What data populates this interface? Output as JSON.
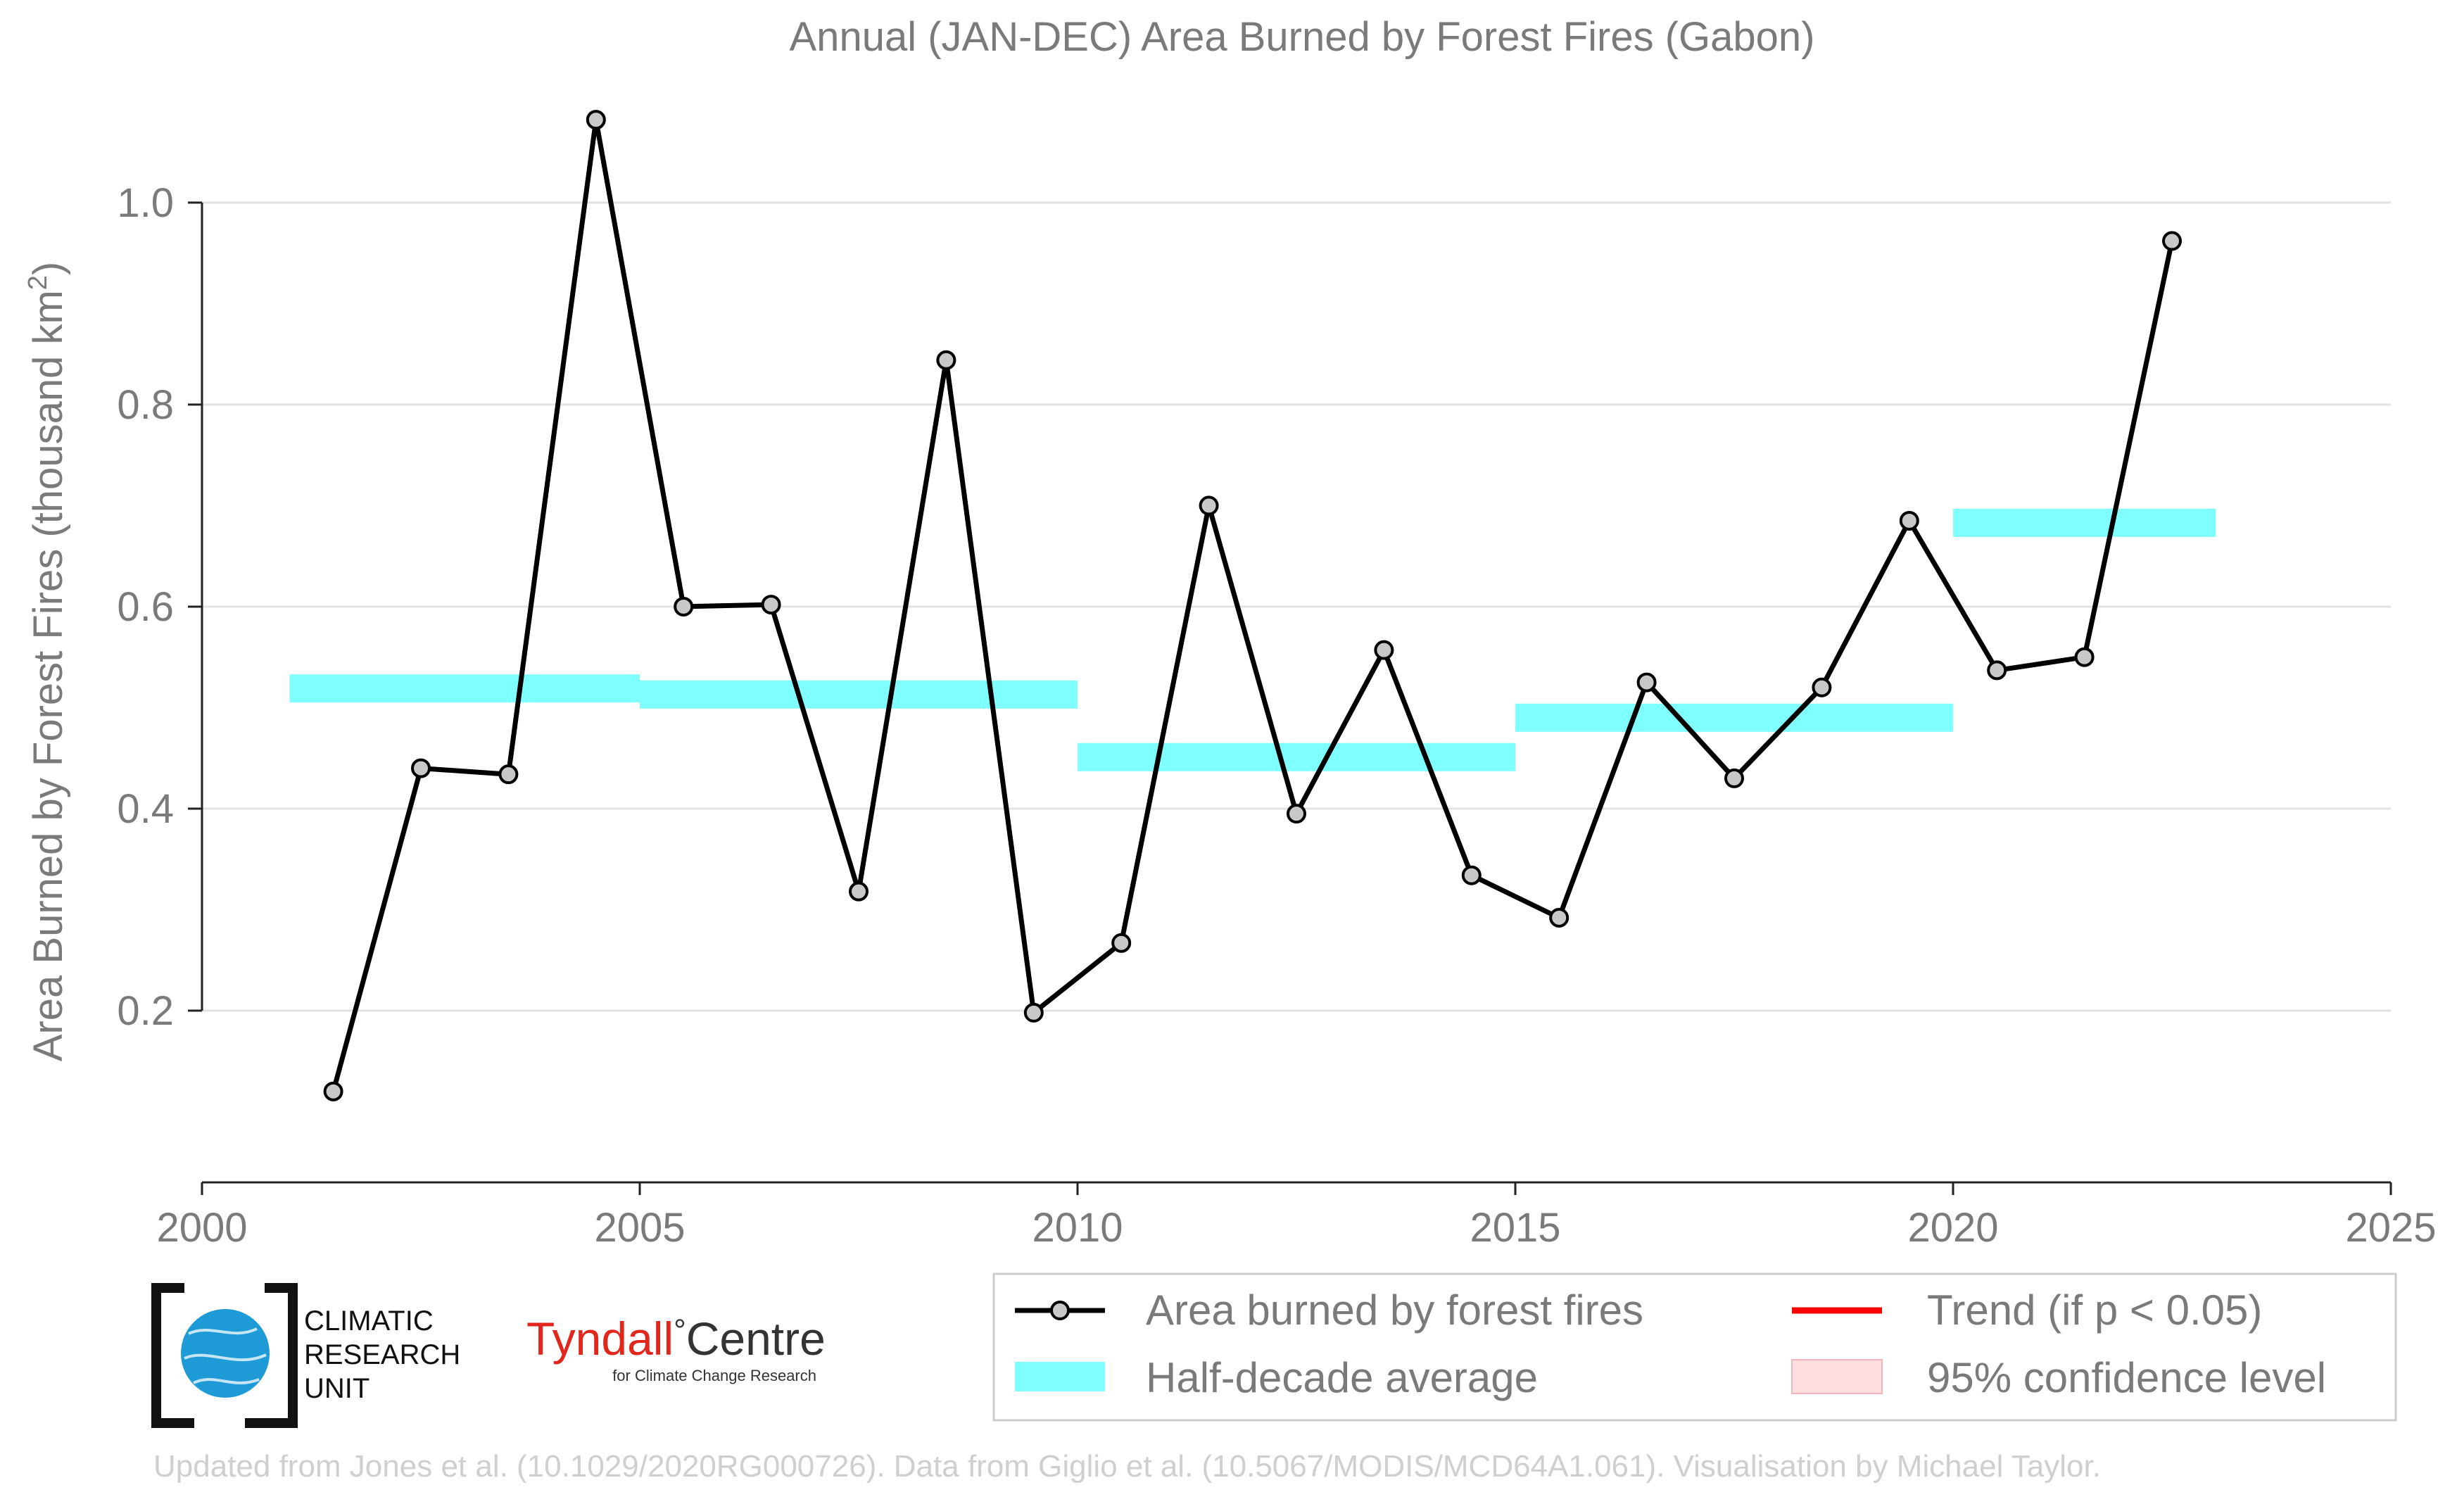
{
  "chart_data": {
    "type": "line",
    "title": "Annual (JAN-DEC) Area Burned by Forest Fires (Gabon)",
    "ylabel": "Area Burned by Forest Fires (thousand km",
    "ylabel_superscript": "2",
    "ylabel_close": ")",
    "xlabel": "",
    "xlim": [
      2000,
      2025
    ],
    "ylim": [
      0.03,
      1.11
    ],
    "x_ticks": [
      2000,
      2005,
      2010,
      2015,
      2020,
      2025
    ],
    "x_tick_labels": [
      "2000",
      "2005",
      "2010",
      "2015",
      "2020",
      "2025"
    ],
    "y_ticks": [
      0.2,
      0.4,
      0.6,
      0.8,
      1.0
    ],
    "y_tick_labels": [
      "0.2",
      "0.4",
      "0.6",
      "0.8",
      "1.0"
    ],
    "grid": "horizontal",
    "legend_position": "bottom-right",
    "series": [
      {
        "name": "Area burned by forest fires",
        "color": "#000000",
        "marker_fill": "#c8c8c8",
        "x": [
          2001.5,
          2002.5,
          2003.5,
          2004.5,
          2005.5,
          2006.5,
          2007.5,
          2008.5,
          2009.5,
          2010.5,
          2011.5,
          2012.5,
          2013.5,
          2014.5,
          2015.5,
          2016.5,
          2017.5,
          2018.5,
          2019.5,
          2020.5,
          2021.5,
          2022.5
        ],
        "values": [
          0.12,
          0.44,
          0.434,
          1.082,
          0.6,
          0.602,
          0.318,
          0.844,
          0.198,
          0.267,
          0.7,
          0.395,
          0.557,
          0.334,
          0.292,
          0.525,
          0.43,
          0.52,
          0.685,
          0.537,
          0.55,
          0.962
        ]
      }
    ],
    "half_decade_averages": {
      "name": "Half-decade average",
      "color": "#7fffff",
      "segments": [
        {
          "x_start": 2001,
          "x_end": 2005,
          "value": 0.519
        },
        {
          "x_start": 2005,
          "x_end": 2010,
          "value": 0.513
        },
        {
          "x_start": 2010,
          "x_end": 2015,
          "value": 0.451
        },
        {
          "x_start": 2015,
          "x_end": 2020,
          "value": 0.49
        },
        {
          "x_start": 2020,
          "x_end": 2023,
          "value": 0.683
        }
      ]
    },
    "legend": [
      {
        "label": "Area burned by forest fires",
        "type": "line-marker",
        "color": "#000000"
      },
      {
        "label": "Trend (if p < 0.05)",
        "type": "line",
        "color": "#ff0000"
      },
      {
        "label": "Half-decade average",
        "type": "band",
        "color": "#7fffff"
      },
      {
        "label": "95% confidence level",
        "type": "band",
        "color": "#ffdde0"
      }
    ]
  },
  "logos": {
    "cru_line1": "CLIMATIC",
    "cru_line2": "RESEARCH",
    "cru_line3": "UNIT",
    "tyndall_name": "Tyndall",
    "tyndall_degree": "°",
    "tyndall_centre": "Centre",
    "tyndall_subtitle": "for Climate Change Research"
  },
  "footer": {
    "credit": "Updated from Jones et al. (10.1029/2020RG000726). Data from Giglio et al. (10.5067/MODIS/MCD64A1.061). Visualisation by Michael Taylor."
  },
  "colors": {
    "text_gray": "#7a7a7a",
    "grid": "#e2e2e2",
    "footer_gray": "#cfcfcf",
    "cru_blue": "#1e9ad6",
    "tyndall_red": "#e1261c"
  }
}
